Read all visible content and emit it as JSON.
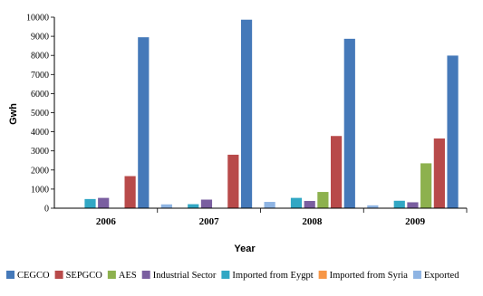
{
  "chart_data": {
    "type": "bar",
    "xlabel": "Year",
    "ylabel": "Gwh",
    "ylim": [
      0,
      10000
    ],
    "yticks": [
      0,
      1000,
      2000,
      3000,
      4000,
      5000,
      6000,
      7000,
      8000,
      9000,
      10000
    ],
    "grid": false,
    "legend_position": "bottom",
    "categories": [
      "2006",
      "2007",
      "2008",
      "2009"
    ],
    "series": [
      {
        "name": "Exported",
        "color": "#8eb4e3",
        "values": [
          0,
          200,
          330,
          150
        ]
      },
      {
        "name": "Imported from Syria",
        "color": "#f79646",
        "values": [
          0,
          0,
          0,
          0
        ]
      },
      {
        "name": "Imported from Eygpt",
        "color": "#31a7c4",
        "values": [
          480,
          210,
          540,
          390
        ]
      },
      {
        "name": "Industrial Sector",
        "color": "#7a5ea0",
        "values": [
          540,
          450,
          380,
          310
        ]
      },
      {
        "name": "AES",
        "color": "#8db14e",
        "values": [
          0,
          0,
          850,
          2350
        ]
      },
      {
        "name": "SEPGCO",
        "color": "#b84a4a",
        "values": [
          1680,
          2800,
          3780,
          3650
        ]
      },
      {
        "name": "CEGCO",
        "color": "#4579b9",
        "values": [
          8950,
          9870,
          8870,
          7990
        ]
      }
    ],
    "legend_order": [
      "CEGCO",
      "SEPGCO",
      "AES",
      "Industrial Sector",
      "Imported from Eygpt",
      "Imported from Syria",
      "Exported"
    ]
  }
}
